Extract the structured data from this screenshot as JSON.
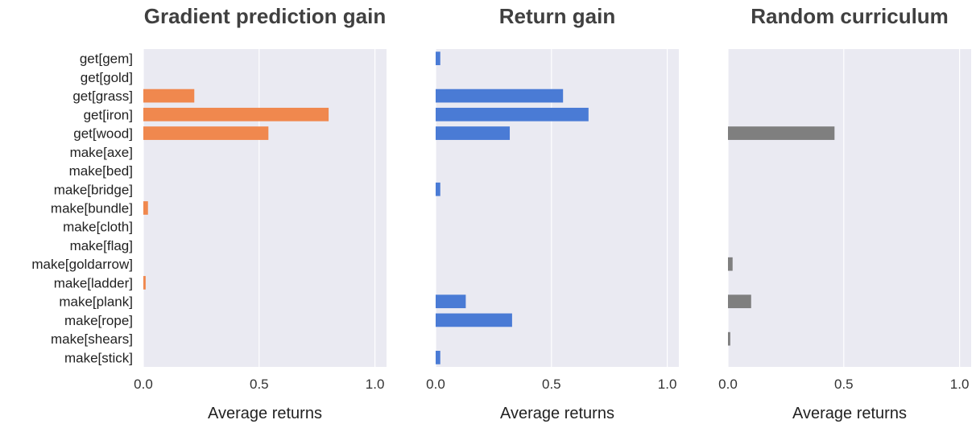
{
  "chart_data": [
    {
      "type": "bar",
      "orientation": "horizontal",
      "title": "Gradient prediction gain",
      "xlabel": "Average returns",
      "xlim": [
        0,
        1.05
      ],
      "xticks": [
        "0.0",
        "0.5",
        "1.0"
      ],
      "categories": [
        "get[gem]",
        "get[gold]",
        "get[grass]",
        "get[iron]",
        "get[wood]",
        "make[axe]",
        "make[bed]",
        "make[bridge]",
        "make[bundle]",
        "make[cloth]",
        "make[flag]",
        "make[goldarrow]",
        "make[ladder]",
        "make[plank]",
        "make[rope]",
        "make[shears]",
        "make[stick]"
      ],
      "values": [
        0,
        0,
        0.22,
        0.8,
        0.54,
        0,
        0,
        0,
        0.02,
        0,
        0,
        0,
        0.01,
        0,
        0,
        0,
        0
      ],
      "color": "#F0884E",
      "grid": true,
      "show_categories": true
    },
    {
      "type": "bar",
      "orientation": "horizontal",
      "title": "Return gain",
      "xlabel": "Average returns",
      "xlim": [
        0,
        1.05
      ],
      "xticks": [
        "0.0",
        "0.5",
        "1.0"
      ],
      "categories": [
        "get[gem]",
        "get[gold]",
        "get[grass]",
        "get[iron]",
        "get[wood]",
        "make[axe]",
        "make[bed]",
        "make[bridge]",
        "make[bundle]",
        "make[cloth]",
        "make[flag]",
        "make[goldarrow]",
        "make[ladder]",
        "make[plank]",
        "make[rope]",
        "make[shears]",
        "make[stick]"
      ],
      "values": [
        0.02,
        0,
        0.55,
        0.66,
        0.32,
        0,
        0,
        0.02,
        0,
        0,
        0,
        0,
        0,
        0.13,
        0.33,
        0,
        0.02
      ],
      "color": "#4A7BD5",
      "grid": true,
      "show_categories": false
    },
    {
      "type": "bar",
      "orientation": "horizontal",
      "title": "Random curriculum",
      "xlabel": "Average returns",
      "xlim": [
        0,
        1.05
      ],
      "xticks": [
        "0.0",
        "0.5",
        "1.0"
      ],
      "categories": [
        "get[gem]",
        "get[gold]",
        "get[grass]",
        "get[iron]",
        "get[wood]",
        "make[axe]",
        "make[bed]",
        "make[bridge]",
        "make[bundle]",
        "make[cloth]",
        "make[flag]",
        "make[goldarrow]",
        "make[ladder]",
        "make[plank]",
        "make[rope]",
        "make[shears]",
        "make[stick]"
      ],
      "values": [
        0,
        0,
        0,
        0,
        0.46,
        0,
        0,
        0,
        0,
        0,
        0,
        0.02,
        0,
        0.1,
        0,
        0.01,
        0
      ],
      "color": "#7F7F7F",
      "grid": true,
      "show_categories": false
    }
  ]
}
